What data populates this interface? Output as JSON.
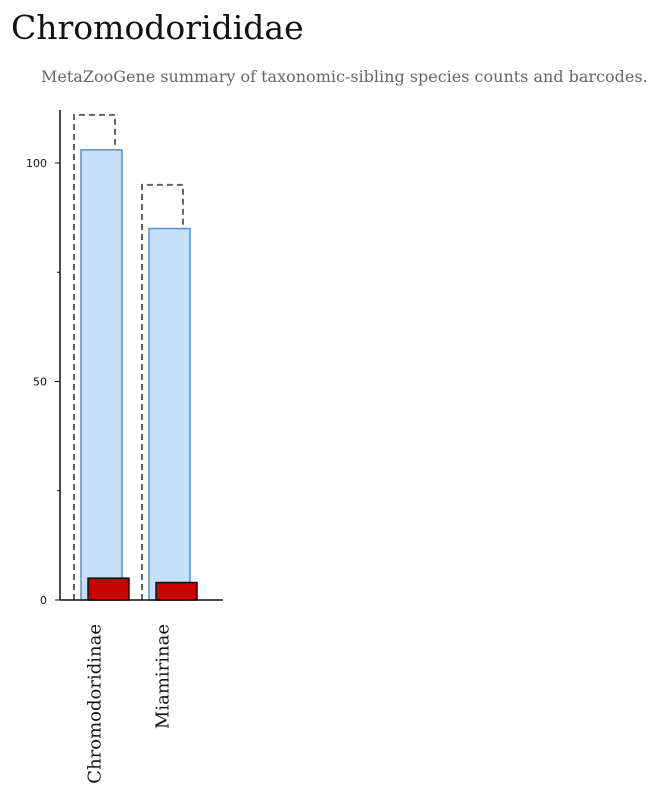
{
  "page": {
    "title": "Chromodorididae",
    "subtitle": "MetaZooGene summary of taxonomic-sibling species counts and barcodes."
  },
  "colors": {
    "dashed_outline": "#666666",
    "species_bar_fill": "#c6e0f9",
    "species_bar_stroke": "#5a8fc4",
    "barcode_bar_fill": "#cc0000",
    "barcode_bar_stroke": "#111111",
    "axis": "#111111"
  },
  "chart_data": {
    "type": "bar",
    "categories": [
      "Chromodoridinae",
      "Miamirinae"
    ],
    "series": [
      {
        "values": [
          111,
          95
        ],
        "style": "dashed-outline"
      },
      {
        "values": [
          103,
          85
        ],
        "style": "light-blue-fill"
      },
      {
        "values": [
          5,
          4
        ],
        "style": "red-fill"
      }
    ],
    "yticks": [
      0,
      50,
      100
    ],
    "ytick_labels": [
      "0",
      "50",
      "100"
    ],
    "ylim": [
      0,
      112
    ],
    "xlabel": "",
    "ylabel": "",
    "grid": false,
    "legend": "none"
  }
}
